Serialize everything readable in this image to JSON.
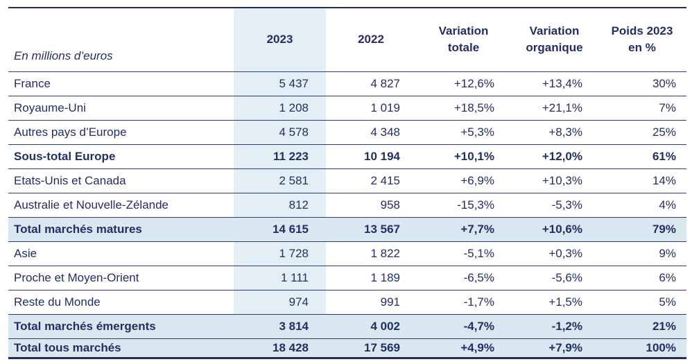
{
  "table": {
    "unit_note": "En millions d’euros",
    "columns": [
      "2023",
      "2022",
      "Variation\ntotale",
      "Variation\norganique",
      "Poids 2023\nen %"
    ],
    "rows": [
      {
        "label": "France",
        "y2023": "5 437",
        "y2022": "4 827",
        "var_totale": "+12,6%",
        "var_organique": "+13,4%",
        "poids": "30%",
        "style": "normal"
      },
      {
        "label": "Royaume-Uni",
        "y2023": "1 208",
        "y2022": "1 019",
        "var_totale": "+18,5%",
        "var_organique": "+21,1%",
        "poids": "7%",
        "style": "normal"
      },
      {
        "label": "Autres pays d’Europe",
        "y2023": "4 578",
        "y2022": "4 348",
        "var_totale": "+5,3%",
        "var_organique": "+8,3%",
        "poids": "25%",
        "style": "normal"
      },
      {
        "label": "Sous-total Europe",
        "y2023": "11 223",
        "y2022": "10 194",
        "var_totale": "+10,1%",
        "var_organique": "+12,0%",
        "poids": "61%",
        "style": "subtotal"
      },
      {
        "label": "Etats-Unis et Canada",
        "y2023": "2 581",
        "y2022": "2 415",
        "var_totale": "+6,9%",
        "var_organique": "+10,3%",
        "poids": "14%",
        "style": "normal"
      },
      {
        "label": "Australie et Nouvelle-Zélande",
        "y2023": "812",
        "y2022": "958",
        "var_totale": "-15,3%",
        "var_organique": "-5,3%",
        "poids": "4%",
        "style": "normal"
      },
      {
        "label": "Total marchés matures",
        "y2023": "14 615",
        "y2022": "13 567",
        "var_totale": "+7,7%",
        "var_organique": "+10,6%",
        "poids": "79%",
        "style": "total"
      },
      {
        "label": "Asie",
        "y2023": "1 728",
        "y2022": "1 822",
        "var_totale": "-5,1%",
        "var_organique": "+0,3%",
        "poids": "9%",
        "style": "normal"
      },
      {
        "label": "Proche et Moyen-Orient",
        "y2023": "1 111",
        "y2022": "1 189",
        "var_totale": "-6,5%",
        "var_organique": "-5,6%",
        "poids": "6%",
        "style": "normal"
      },
      {
        "label": "Reste du Monde",
        "y2023": "974",
        "y2022": "991",
        "var_totale": "-1,7%",
        "var_organique": "+1,5%",
        "poids": "5%",
        "style": "normal"
      },
      {
        "label": "Total marchés émergents",
        "y2023": "3 814",
        "y2022": "4 002",
        "var_totale": "-4,7%",
        "var_organique": "-1,2%",
        "poids": "21%",
        "style": "total"
      },
      {
        "label": "Total tous marchés",
        "y2023": "18 428",
        "y2022": "17 569",
        "var_totale": "+4,9%",
        "var_organique": "+7,9%",
        "poids": "100%",
        "style": "total"
      }
    ],
    "colors": {
      "text_navy": "#232e63",
      "column_highlight": "#e3eff5",
      "total_row_highlight": "#d9e8f0",
      "border_navy": "#222c58"
    }
  }
}
